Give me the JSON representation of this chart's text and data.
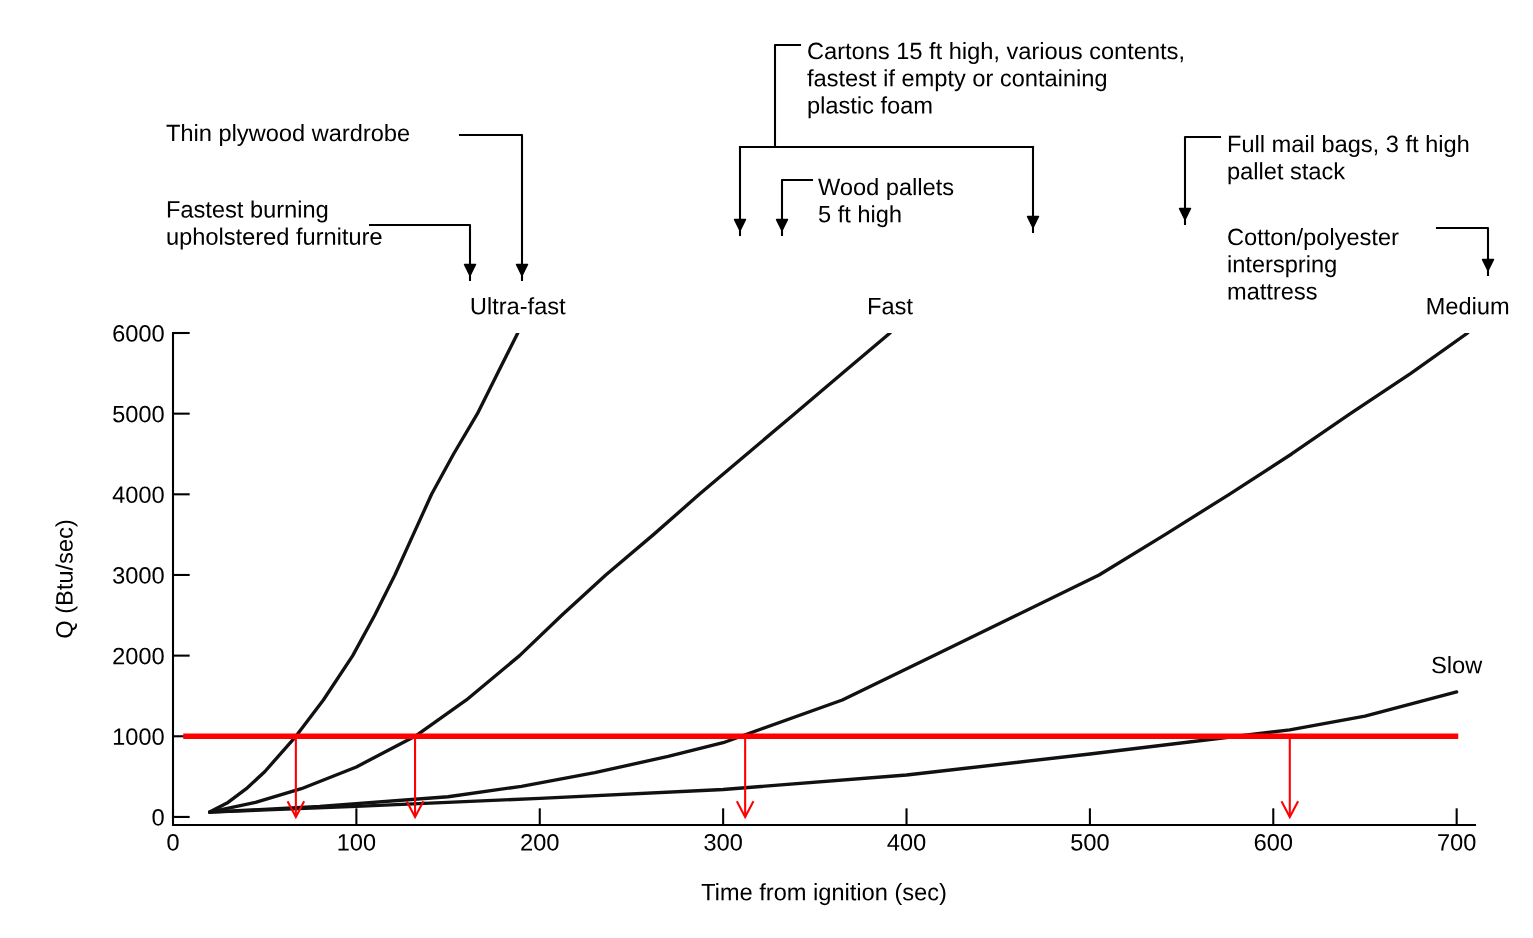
{
  "chart_data": {
    "type": "line",
    "xlabel": "Time from ignition (sec)",
    "ylabel": "Q (Btu/sec)",
    "xlim": [
      0,
      710
    ],
    "xticks": [
      0,
      100,
      200,
      300,
      400,
      500,
      600,
      700
    ],
    "ylim": [
      -100,
      6000
    ],
    "yticks": [
      0,
      1000,
      2000,
      3000,
      4000,
      5000,
      6000
    ],
    "grid": false,
    "legend": false,
    "marker": "none",
    "line_style": "solid",
    "series": [
      {
        "name": "Ultra-fast",
        "color": "#111111",
        "x": [
          20,
          30,
          40,
          50,
          67,
          82,
          98,
          110,
          121,
          131,
          141,
          153,
          166,
          177,
          188
        ],
        "values": [
          60,
          180,
          350,
          560,
          1000,
          1450,
          2000,
          2500,
          3000,
          3500,
          4000,
          4500,
          5000,
          5500,
          6000
        ]
      },
      {
        "name": "Fast",
        "color": "#111111",
        "x": [
          20,
          45,
          70,
          100,
          132,
          160,
          189,
          212,
          236,
          262,
          287,
          313,
          339,
          365,
          391
        ],
        "values": [
          60,
          180,
          350,
          620,
          1000,
          1450,
          2000,
          2500,
          3000,
          3500,
          4000,
          4500,
          5000,
          5500,
          6000
        ]
      },
      {
        "name": "Medium",
        "color": "#111111",
        "x": [
          20,
          80,
          150,
          190,
          230,
          270,
          300,
          365,
          415,
          460,
          505,
          541,
          576,
          610,
          642,
          675,
          706
        ],
        "values": [
          60,
          130,
          250,
          380,
          550,
          750,
          920,
          1450,
          2000,
          2500,
          3000,
          3500,
          4000,
          4500,
          5000,
          5500,
          6000
        ]
      },
      {
        "name": "Slow",
        "color": "#111111",
        "x": [
          20,
          100,
          200,
          300,
          400,
          500,
          609,
          650,
          700
        ],
        "values": [
          60,
          130,
          230,
          340,
          520,
          780,
          1080,
          1250,
          1550
        ]
      },
      {
        "color": "#ff0000",
        "x": [
          67,
          67
        ],
        "values": [
          1000,
          0
        ]
      },
      {
        "color": "#ff0000",
        "x": [
          132,
          132
        ],
        "values": [
          1000,
          0
        ]
      },
      {
        "color": "#ff0000",
        "x": [
          312,
          312
        ],
        "values": [
          1000,
          0
        ]
      },
      {
        "color": "#ff0000",
        "x": [
          609,
          609
        ],
        "values": [
          1000,
          0
        ]
      }
    ],
    "ref_lines": [
      {
        "axis": "y",
        "value": 1000,
        "color": "#ff0000",
        "line_style": "solid"
      }
    ],
    "annotations": [
      "Thin plywood wardrobe",
      "Fastest burning\nupholstered furniture",
      "Cartons 15 ft high, various contents,\nfastest if empty or containing\nplastic foam",
      "Wood pallets\n5 ft high",
      "Full mail bags, 3 ft high\npallet stack",
      "Cotton/polyester\ninterspring\nmattress"
    ]
  }
}
